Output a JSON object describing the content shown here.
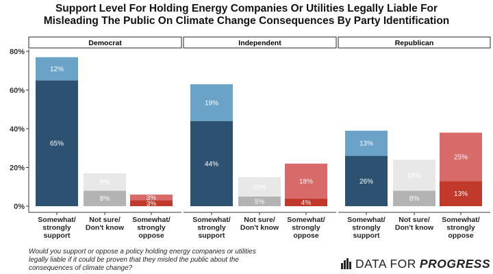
{
  "title_lines": [
    "Support Level For Holding Energy Companies Or Utilities Legally Liable For",
    "Misleading The Public On Climate Change Consequences By Party Identification"
  ],
  "question": "Would you support or oppose a policy holding energy companies or utilities legally liable if it could be proven that they misled the public about the consequences of climate change?",
  "logo": {
    "text_light": "DATA FOR",
    "text_strong": "PROGRESS"
  },
  "colors": {
    "support_strong": "#2d5170",
    "support_somewhat": "#6aa2c8",
    "notsure_strong": "#b3b3b3",
    "notsure_somewhat": "#e8e8e8",
    "oppose_strong": "#c0392b",
    "oppose_somewhat": "#d96a6a"
  },
  "chart_data": {
    "type": "bar",
    "stacked": true,
    "ylim": [
      0,
      80
    ],
    "yticks": [
      0,
      20,
      40,
      60,
      80
    ],
    "ytick_labels": [
      "0%",
      "20%",
      "40%",
      "60%",
      "80%"
    ],
    "categories": [
      "Somewhat/\nstrongly\nsupport",
      "Not sure/\nDon't know",
      "Somewhat/\nstrongly\noppose"
    ],
    "panels": [
      {
        "name": "Democrat",
        "bars": [
          {
            "segments": [
              {
                "value": 65,
                "label": "65%",
                "color_key": "support_strong"
              },
              {
                "value": 12,
                "label": "12%",
                "color_key": "support_somewhat"
              }
            ]
          },
          {
            "segments": [
              {
                "value": 8,
                "label": "8%",
                "color_key": "notsure_strong"
              },
              {
                "value": 9,
                "label": "9%",
                "color_key": "notsure_somewhat"
              }
            ]
          },
          {
            "segments": [
              {
                "value": 3,
                "label": "3%",
                "color_key": "oppose_strong"
              },
              {
                "value": 3,
                "label": "3%",
                "color_key": "oppose_somewhat"
              }
            ]
          }
        ]
      },
      {
        "name": "Independent",
        "bars": [
          {
            "segments": [
              {
                "value": 44,
                "label": "44%",
                "color_key": "support_strong"
              },
              {
                "value": 19,
                "label": "19%",
                "color_key": "support_somewhat"
              }
            ]
          },
          {
            "segments": [
              {
                "value": 5,
                "label": "5%",
                "color_key": "notsure_strong"
              },
              {
                "value": 10,
                "label": "10%",
                "color_key": "notsure_somewhat"
              }
            ]
          },
          {
            "segments": [
              {
                "value": 4,
                "label": "4%",
                "color_key": "oppose_strong"
              },
              {
                "value": 18,
                "label": "18%",
                "color_key": "oppose_somewhat"
              }
            ]
          }
        ]
      },
      {
        "name": "Republican",
        "bars": [
          {
            "segments": [
              {
                "value": 26,
                "label": "26%",
                "color_key": "support_strong"
              },
              {
                "value": 13,
                "label": "13%",
                "color_key": "support_somewhat"
              }
            ]
          },
          {
            "segments": [
              {
                "value": 8,
                "label": "8%",
                "color_key": "notsure_strong"
              },
              {
                "value": 16,
                "label": "16%",
                "color_key": "notsure_somewhat"
              }
            ]
          },
          {
            "segments": [
              {
                "value": 13,
                "label": "13%",
                "color_key": "oppose_strong"
              },
              {
                "value": 25,
                "label": "25%",
                "color_key": "oppose_somewhat"
              }
            ]
          }
        ]
      }
    ]
  }
}
